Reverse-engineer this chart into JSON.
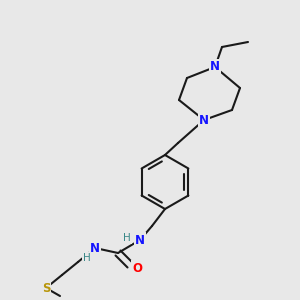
{
  "background_color": "#e8e8e8",
  "bond_color": "#1a1a1a",
  "N_color": "#1414ff",
  "O_color": "#ff0000",
  "S_color": "#b8960a",
  "H_color": "#3a8888",
  "bond_lw": 1.5,
  "figsize": [
    3.0,
    3.0
  ],
  "dpi": 100,
  "xlim": [
    0,
    300
  ],
  "ylim": [
    0,
    300
  ]
}
